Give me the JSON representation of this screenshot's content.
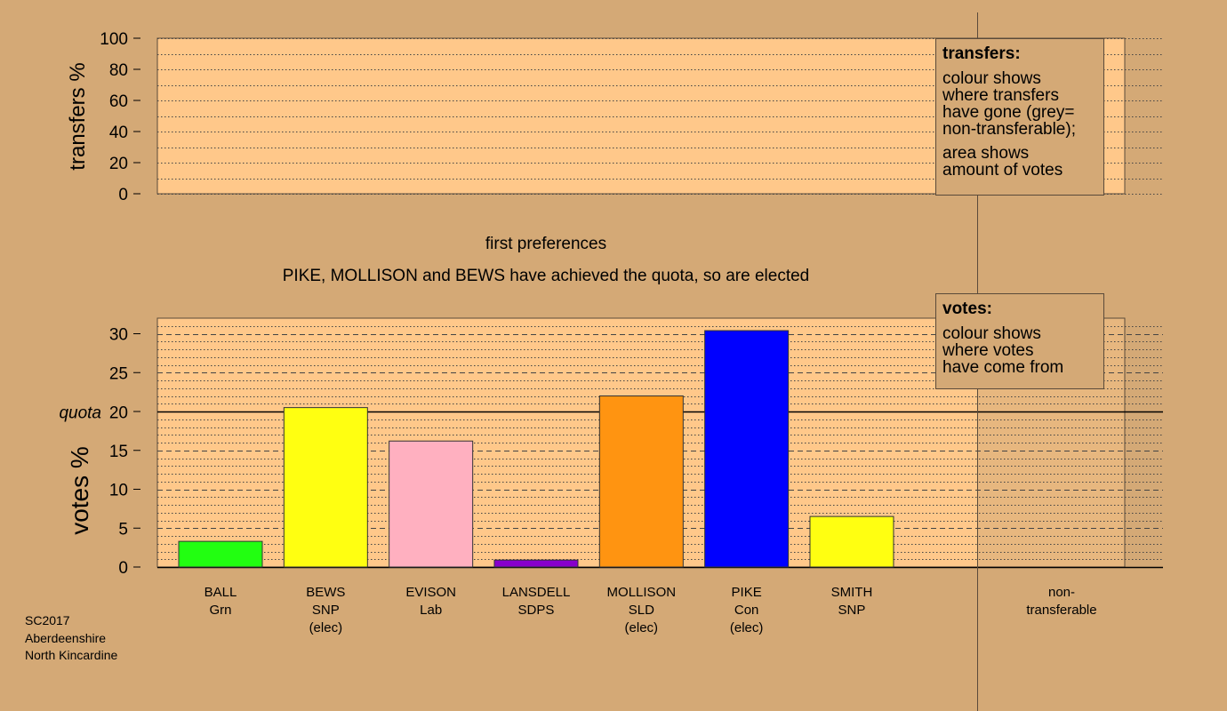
{
  "chart_data": [
    {
      "type": "bar",
      "name": "transfers",
      "ylabel": "transfers %",
      "ylim": [
        0,
        100
      ],
      "yticks": [
        0,
        20,
        40,
        60,
        80,
        100
      ],
      "values": []
    },
    {
      "type": "bar",
      "name": "votes",
      "title": "first preferences",
      "subtitle": "PIKE, MOLLISON and BEWS have achieved the quota, so are elected",
      "ylabel": "votes %",
      "ylim": [
        0,
        32
      ],
      "yticks": [
        0,
        5,
        10,
        15,
        20,
        25,
        30
      ],
      "quota": 20,
      "quota_label": "quota",
      "categories": [
        {
          "name": "BALL",
          "party": "Grn",
          "status": "",
          "value": 3.3,
          "color": "#22ff11"
        },
        {
          "name": "BEWS",
          "party": "SNP",
          "status": "(elec)",
          "value": 20.5,
          "color": "#ffff11"
        },
        {
          "name": "EVISON",
          "party": "Lab",
          "status": "",
          "value": 16.2,
          "color": "#ffb0c0"
        },
        {
          "name": "LANSDELL",
          "party": "SDPS",
          "status": "",
          "value": 0.9,
          "color": "#8800cc"
        },
        {
          "name": "MOLLISON",
          "party": "SLD",
          "status": "(elec)",
          "value": 22.0,
          "color": "#ff9411"
        },
        {
          "name": "PIKE",
          "party": "Con",
          "status": "(elec)",
          "value": 30.4,
          "color": "#0000ff"
        },
        {
          "name": "SMITH",
          "party": "SNP",
          "status": "",
          "value": 6.5,
          "color": "#ffff11"
        }
      ],
      "nontransferable": {
        "label_line1": "non-",
        "label_line2": "transferable"
      }
    }
  ],
  "legend_transfers": {
    "title": "transfers:",
    "lines1": [
      "colour shows",
      "where transfers",
      "have gone (grey=",
      "non-transferable);"
    ],
    "lines2": [
      "area shows",
      "amount of votes"
    ]
  },
  "legend_votes": {
    "title": "votes:",
    "lines1": [
      "colour shows",
      "where votes",
      "have come from"
    ]
  },
  "footer": [
    "SC2017",
    "Aberdeenshire",
    "North Kincardine"
  ],
  "colors": {
    "background": "#d4a976",
    "plot_fill": "#ffc88a",
    "nt_fill": "#d4a976"
  }
}
